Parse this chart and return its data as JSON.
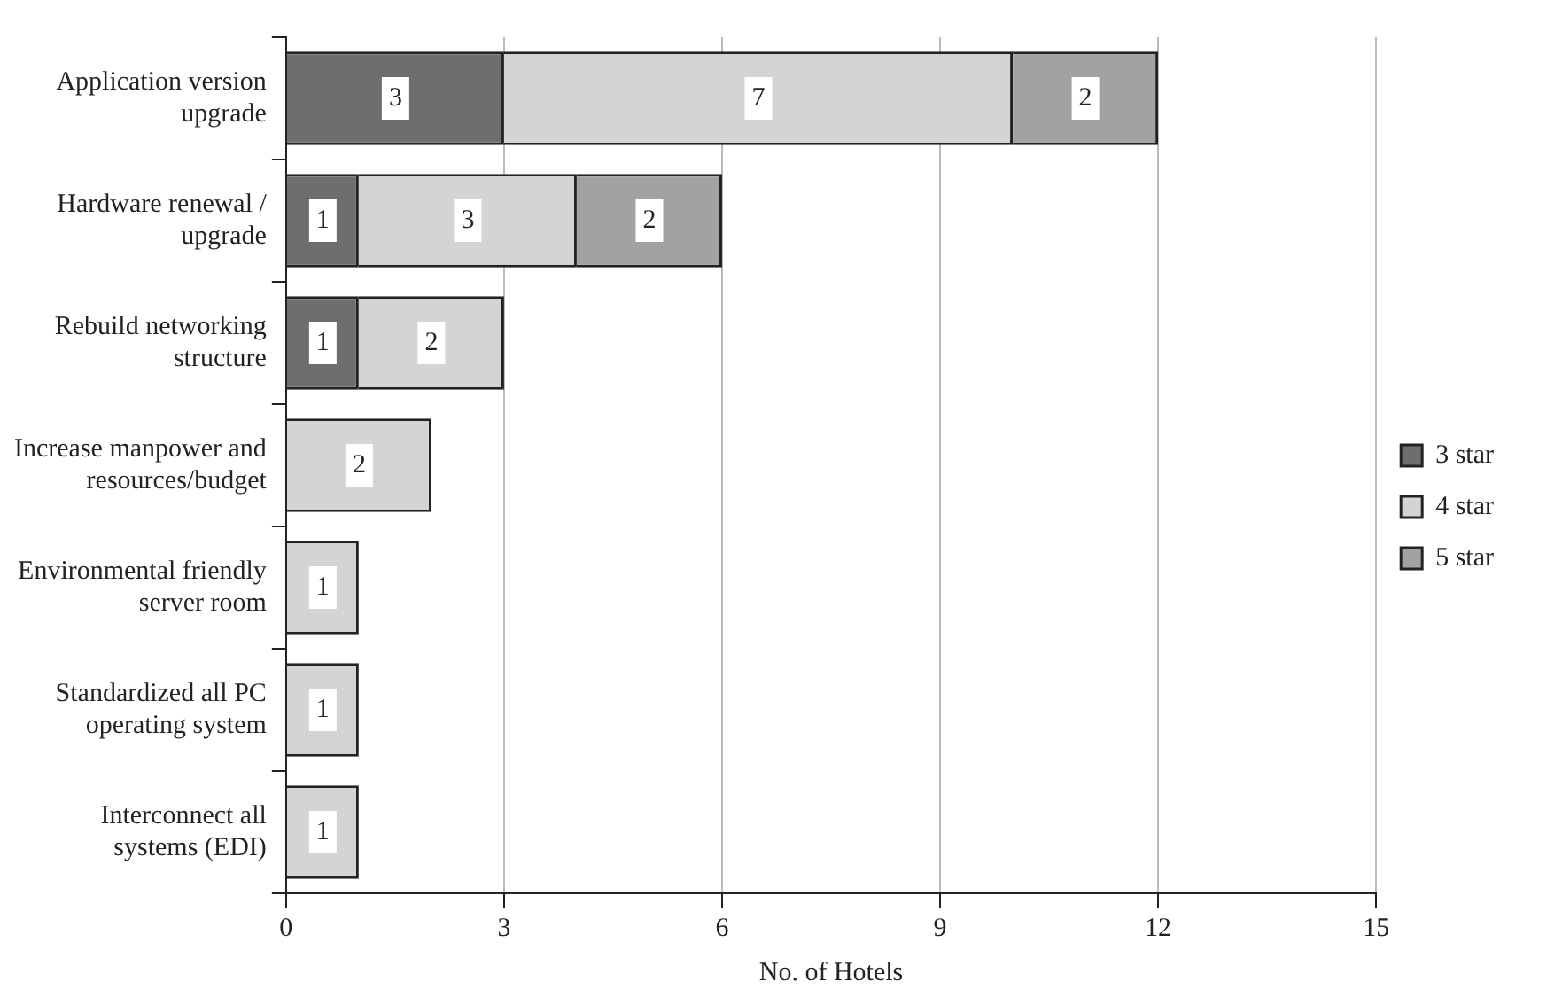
{
  "chart_data": {
    "type": "bar",
    "orientation": "horizontal",
    "stacked": true,
    "xlabel": "No. of Hotels",
    "categories": [
      "Application version upgrade",
      "Hardware renewal / upgrade",
      "Rebuild networking structure",
      "Increase manpower and resources/budget",
      "Environmental friendly server room",
      "Standardized all PC operating system",
      "Interconnect all systems (EDI)"
    ],
    "series": [
      {
        "name": "3 star",
        "color": "#6e6e6e",
        "values": [
          3,
          1,
          1,
          null,
          null,
          null,
          null
        ]
      },
      {
        "name": "4 star",
        "color": "#d4d4d4",
        "values": [
          7,
          3,
          2,
          2,
          1,
          1,
          1
        ]
      },
      {
        "name": "5 star",
        "color": "#a2a2a2",
        "values": [
          2,
          2,
          null,
          null,
          null,
          null,
          null
        ]
      }
    ],
    "xlim": [
      0,
      15
    ],
    "xticks": [
      0,
      3,
      6,
      9,
      12,
      15
    ],
    "grid": "x",
    "legend": "right",
    "data_labels": true
  }
}
